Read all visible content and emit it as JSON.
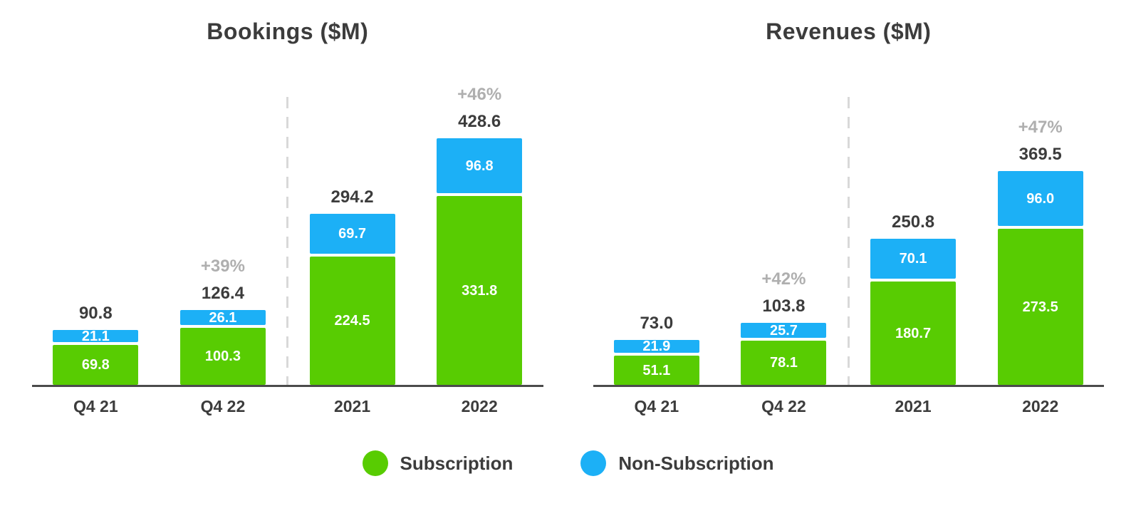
{
  "legend": {
    "items": [
      {
        "label": "Subscription",
        "color": "#58cc02"
      },
      {
        "label": "Non-Subscription",
        "color": "#1cb0f6"
      }
    ]
  },
  "chart_data": [
    {
      "type": "bar",
      "stacked": true,
      "title": "Bookings ($M)",
      "unit": "$M",
      "categories": [
        "Q4 21",
        "Q4 22",
        "2021",
        "2022"
      ],
      "series": [
        {
          "name": "Subscription",
          "color": "#58cc02",
          "values": [
            69.8,
            100.3,
            224.5,
            331.8
          ]
        },
        {
          "name": "Non-Subscription",
          "color": "#1cb0f6",
          "values": [
            21.1,
            26.1,
            69.7,
            96.8
          ]
        }
      ],
      "totals": [
        90.8,
        126.4,
        294.2,
        428.6
      ],
      "growth_labels": [
        null,
        "+39%",
        null,
        "+46%"
      ],
      "divider_after_index": 1,
      "ylim": [
        0,
        450
      ],
      "legend_position": "bottom-center",
      "grid": false
    },
    {
      "type": "bar",
      "stacked": true,
      "title": "Revenues ($M)",
      "unit": "$M",
      "categories": [
        "Q4 21",
        "Q4 22",
        "2021",
        "2022"
      ],
      "series": [
        {
          "name": "Subscription",
          "color": "#58cc02",
          "values": [
            51.1,
            78.1,
            180.7,
            273.5
          ]
        },
        {
          "name": "Non-Subscription",
          "color": "#1cb0f6",
          "values": [
            21.9,
            25.7,
            70.1,
            96.0
          ]
        }
      ],
      "totals": [
        73.0,
        103.8,
        250.8,
        369.5
      ],
      "growth_labels": [
        null,
        "+42%",
        null,
        "+47%"
      ],
      "divider_after_index": 1,
      "ylim": [
        0,
        450
      ],
      "legend_position": "bottom-center",
      "grid": false
    }
  ]
}
